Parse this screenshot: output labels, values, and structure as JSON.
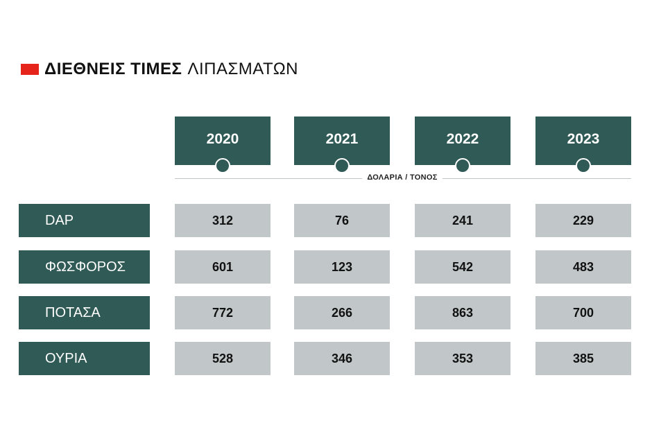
{
  "title": {
    "bold": "ΔΙΕΘΝΕΙΣ ΤΙΜΕΣ",
    "light": "ΛΙΠΑΣΜΑΤΩΝ"
  },
  "unit_label": "ΔΟΛΑΡΙΑ / ΤΟΝΟΣ",
  "colors": {
    "accent": "#e5241b",
    "header_bg": "#2f5a55",
    "cell_bg": "#c1c7c9"
  },
  "chart_data": {
    "type": "table",
    "title": "ΔΙΕΘΝΕΙΣ ΤΙΜΕΣ ΛΙΠΑΣΜΑΤΩΝ",
    "unit": "ΔΟΛΑΡΙΑ / ΤΟΝΟΣ",
    "columns": [
      "2020",
      "2021",
      "2022",
      "2023"
    ],
    "rows": [
      {
        "name": "DAP",
        "values": [
          312,
          76,
          241,
          229
        ]
      },
      {
        "name": "ΦΩΣΦΟΡΟΣ",
        "values": [
          601,
          123,
          542,
          483
        ]
      },
      {
        "name": "ΠΟΤΑΣΑ",
        "values": [
          772,
          266,
          863,
          700
        ]
      },
      {
        "name": "ΟΥΡΙΑ",
        "values": [
          528,
          346,
          353,
          385
        ]
      }
    ]
  }
}
